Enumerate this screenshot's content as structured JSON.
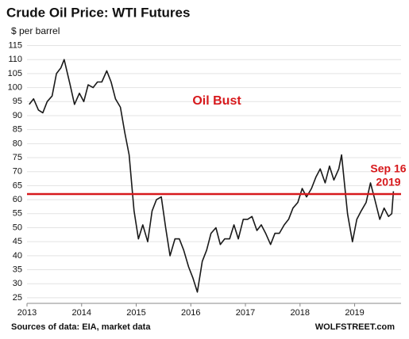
{
  "chart_data": {
    "type": "line",
    "title": "Crude Oil Price: WTI Futures",
    "y_label": "$ per barrel",
    "source": "Sources of data: EIA, market data",
    "credit": "WOLFSTREET.com",
    "annotations": [
      "Oil Bust",
      "Sep 16",
      "2019"
    ],
    "reference_line": 62,
    "reference_color": "#d7191c",
    "color": "#1a1a1a",
    "grid": true,
    "x": [
      2013.04,
      2013.12,
      2013.21,
      2013.29,
      2013.37,
      2013.46,
      2013.54,
      2013.62,
      2013.68,
      2013.79,
      2013.87,
      2013.96,
      2014.04,
      2014.12,
      2014.21,
      2014.29,
      2014.37,
      2014.46,
      2014.54,
      2014.62,
      2014.71,
      2014.79,
      2014.87,
      2014.96,
      2015.04,
      2015.12,
      2015.21,
      2015.29,
      2015.37,
      2015.46,
      2015.54,
      2015.62,
      2015.71,
      2015.79,
      2015.87,
      2015.96,
      2016.04,
      2016.12,
      2016.21,
      2016.29,
      2016.37,
      2016.46,
      2016.54,
      2016.62,
      2016.71,
      2016.79,
      2016.87,
      2016.96,
      2017.04,
      2017.12,
      2017.21,
      2017.29,
      2017.37,
      2017.46,
      2017.54,
      2017.62,
      2017.71,
      2017.79,
      2017.87,
      2017.96,
      2018.04,
      2018.12,
      2018.21,
      2018.29,
      2018.37,
      2018.46,
      2018.54,
      2018.62,
      2018.71,
      2018.76,
      2018.87,
      2018.96,
      2019.04,
      2019.12,
      2019.21,
      2019.29,
      2019.37,
      2019.46,
      2019.54,
      2019.62,
      2019.68,
      2019.71
    ],
    "values": [
      94,
      96,
      92,
      91,
      95,
      97,
      105,
      107,
      110,
      101,
      94,
      98,
      95,
      101,
      100,
      102,
      102,
      106,
      102,
      96,
      93,
      84,
      76,
      56,
      46,
      51,
      45,
      56,
      60,
      61,
      50,
      40,
      46,
      46,
      42,
      36,
      32,
      27,
      38,
      42,
      48,
      50,
      44,
      46,
      46,
      51,
      46,
      53,
      53,
      54,
      49,
      51,
      48,
      44,
      48,
      48,
      51,
      53,
      57,
      59,
      64,
      61,
      64,
      68,
      71,
      66,
      72,
      67,
      71,
      76,
      55,
      45,
      53,
      56,
      59,
      66,
      60,
      53,
      57,
      54,
      55,
      63
    ],
    "xlim": [
      2013,
      2019.85
    ],
    "xticks": [
      2013,
      2014,
      2015,
      2016,
      2017,
      2018,
      2019
    ],
    "ylim": [
      23,
      116
    ],
    "yticks": [
      25,
      30,
      35,
      40,
      45,
      50,
      55,
      60,
      65,
      70,
      75,
      80,
      85,
      90,
      95,
      100,
      105,
      110,
      115
    ]
  }
}
